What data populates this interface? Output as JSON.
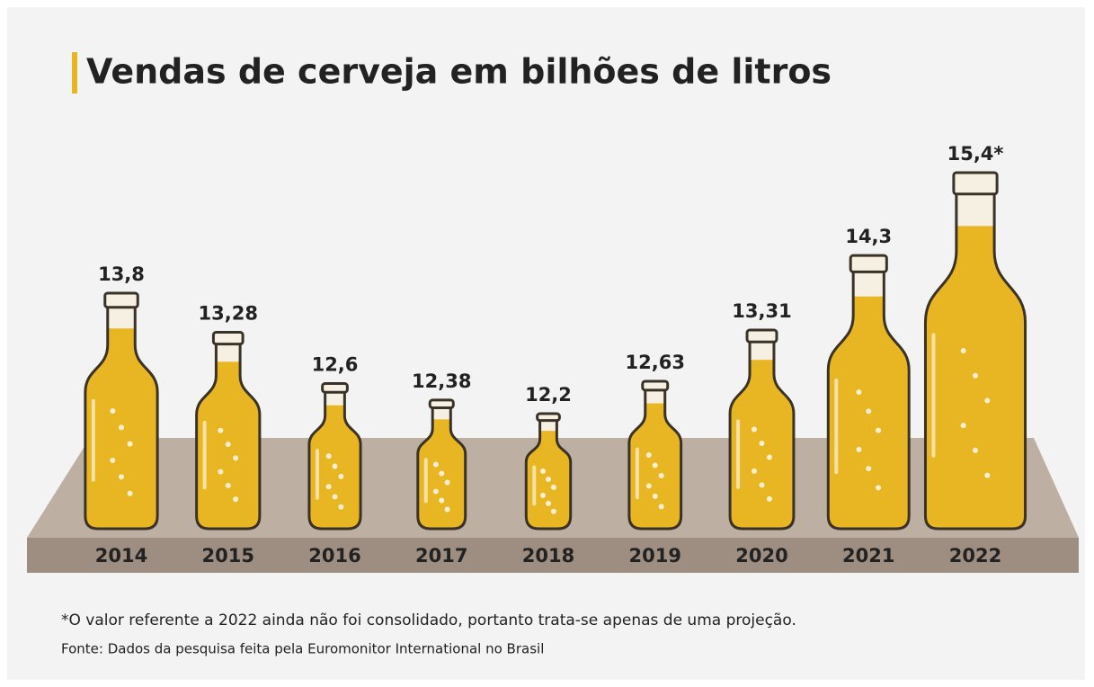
{
  "chart_data": {
    "type": "bar",
    "title": "Vendas de cerveja em bilhões de litros",
    "categories": [
      "2014",
      "2015",
      "2016",
      "2017",
      "2018",
      "2019",
      "2020",
      "2021",
      "2022"
    ],
    "values": [
      13.8,
      13.28,
      12.6,
      12.38,
      12.2,
      12.63,
      13.31,
      14.3,
      15.4
    ],
    "value_labels": [
      "13,8",
      "13,28",
      "12,6",
      "12,38",
      "12,2",
      "12,63",
      "13,31",
      "14,3",
      "15,4*"
    ],
    "color": "#e8b523",
    "note": "*O valor referente a 2022 ainda não foi consolidado, portanto trata-se apenas de uma projeção.",
    "source": "Fonte: Dados da pesquisa feita pela Euromonitor International no Brasil"
  }
}
